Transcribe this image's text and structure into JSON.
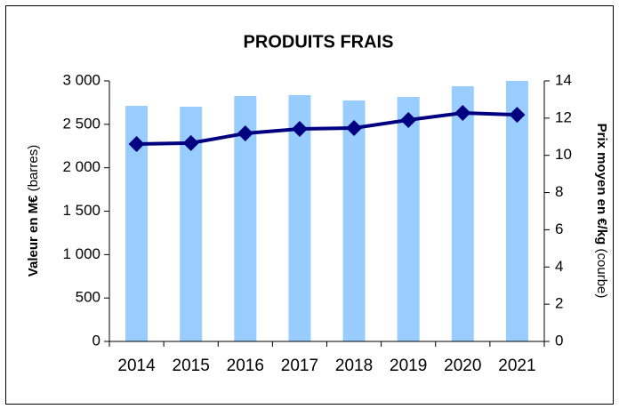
{
  "chart_data": {
    "type": "bar_line",
    "title": "PRODUITS FRAIS",
    "ylabel": {
      "main": "Valeur en M€",
      "note": "(barres)"
    },
    "y2label": {
      "main": "Prix moyen en €/kg",
      "note": "(courbe)"
    },
    "categories": [
      "2014",
      "2015",
      "2016",
      "2017",
      "2018",
      "2019",
      "2020",
      "2021"
    ],
    "series": [
      {
        "name": "Valeur",
        "type": "bar",
        "color": "#99ccff",
        "values": [
          2713,
          2703,
          2826,
          2836,
          2775,
          2816,
          2939,
          3000
        ]
      },
      {
        "name": "Prix moyen",
        "type": "line",
        "axis": "y2",
        "color": "#000080",
        "values": [
          10.61,
          10.66,
          11.18,
          11.42,
          11.47,
          11.9,
          12.28,
          12.18
        ]
      }
    ],
    "ylim": [
      0,
      3000
    ],
    "yticks": [
      0,
      500,
      {
        "value": 1000,
        "label": "1 000"
      },
      {
        "value": 1500,
        "label": "1 500"
      },
      {
        "value": 2000,
        "label": "2 000"
      },
      {
        "value": 2500,
        "label": "2 500"
      },
      {
        "value": 3000,
        "label": "3 000"
      }
    ],
    "y2lim": [
      0,
      14
    ],
    "y2ticks": [
      0,
      2,
      4,
      6,
      8,
      10,
      12,
      14
    ]
  }
}
